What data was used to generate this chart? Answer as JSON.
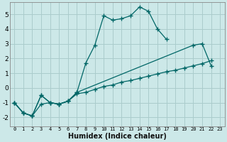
{
  "xlabel": "Humidex (Indice chaleur)",
  "bg_color": "#cce8e8",
  "line_color": "#006666",
  "grid_color": "#aacccc",
  "xlim": [
    -0.5,
    23.5
  ],
  "ylim": [
    -2.6,
    5.8
  ],
  "xticks": [
    0,
    1,
    2,
    3,
    4,
    5,
    6,
    7,
    8,
    9,
    10,
    11,
    12,
    13,
    14,
    15,
    16,
    17,
    18,
    19,
    20,
    21,
    22,
    23
  ],
  "yticks": [
    -2,
    -1,
    0,
    1,
    2,
    3,
    4,
    5
  ],
  "series": [
    {
      "x": [
        0,
        1,
        2,
        3,
        4,
        5,
        6,
        7,
        8,
        9,
        10,
        11,
        12,
        13,
        14,
        15,
        16,
        17
      ],
      "y": [
        -1.0,
        -1.7,
        -1.9,
        -0.5,
        -1.0,
        -1.1,
        -0.9,
        -0.3,
        1.7,
        2.9,
        4.9,
        4.6,
        4.7,
        4.9,
        5.5,
        5.2,
        4.0,
        3.3
      ]
    },
    {
      "x": [
        0,
        1,
        2,
        3,
        4,
        5,
        6,
        7,
        20,
        21,
        22
      ],
      "y": [
        -1.0,
        -1.7,
        -1.9,
        -0.5,
        -1.0,
        -1.1,
        -0.9,
        -0.3,
        2.9,
        3.0,
        1.5
      ]
    },
    {
      "x": [
        0,
        1,
        2,
        3,
        4,
        5,
        6,
        7,
        8,
        9,
        10,
        11,
        12,
        13,
        14,
        15,
        16,
        17,
        18,
        19,
        20,
        21,
        22
      ],
      "y": [
        -1.0,
        -1.7,
        -1.9,
        -1.1,
        -1.0,
        -1.1,
        -0.9,
        -0.4,
        -0.3,
        -0.1,
        0.1,
        0.2,
        0.4,
        0.5,
        0.65,
        0.8,
        0.95,
        1.1,
        1.2,
        1.35,
        1.5,
        1.65,
        1.85
      ]
    }
  ]
}
